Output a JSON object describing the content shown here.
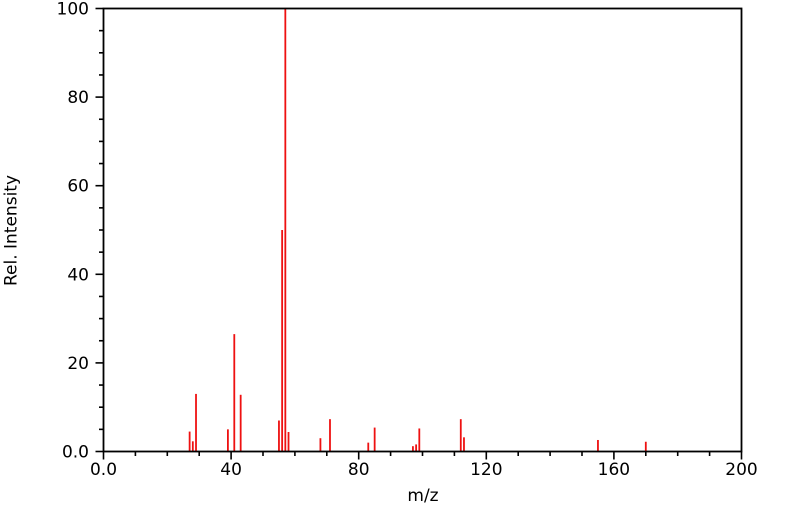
{
  "figure": {
    "background": "#ffffff",
    "xlabel": "m/z",
    "ylabel": "Rel. Intensity"
  },
  "chart_data": {
    "type": "bar",
    "subtype": "mass-spectrum-stem-plot",
    "title": "",
    "xlabel": "m/z",
    "ylabel": "Rel. Intensity",
    "xlim": [
      0,
      200
    ],
    "ylim": [
      0,
      100
    ],
    "grid": false,
    "legend": null,
    "x_major_ticks": [
      0,
      40,
      80,
      120,
      160,
      200
    ],
    "x_major_tick_labels": [
      "0.0",
      "40",
      "80",
      "120",
      "160",
      "200"
    ],
    "x_minor_tick_step": 10,
    "y_major_ticks": [
      0,
      20,
      40,
      60,
      80,
      100
    ],
    "y_major_tick_labels": [
      "0.0",
      "20",
      "40",
      "60",
      "80",
      "100"
    ],
    "y_minor_tick_step": 5,
    "bar_color": "#ee1111",
    "axis_color": "#000000",
    "points": [
      {
        "mz": 27,
        "intensity": 4.5
      },
      {
        "mz": 28,
        "intensity": 2.3
      },
      {
        "mz": 29,
        "intensity": 13.0
      },
      {
        "mz": 39,
        "intensity": 5.0
      },
      {
        "mz": 41,
        "intensity": 26.5
      },
      {
        "mz": 43,
        "intensity": 12.8
      },
      {
        "mz": 55,
        "intensity": 7.0
      },
      {
        "mz": 56,
        "intensity": 50.0
      },
      {
        "mz": 57,
        "intensity": 100.0
      },
      {
        "mz": 58,
        "intensity": 4.4
      },
      {
        "mz": 68,
        "intensity": 3.0
      },
      {
        "mz": 71,
        "intensity": 7.3
      },
      {
        "mz": 83,
        "intensity": 2.0
      },
      {
        "mz": 85,
        "intensity": 5.4
      },
      {
        "mz": 97,
        "intensity": 1.2
      },
      {
        "mz": 98,
        "intensity": 1.6
      },
      {
        "mz": 99,
        "intensity": 5.2
      },
      {
        "mz": 112,
        "intensity": 7.3
      },
      {
        "mz": 113,
        "intensity": 3.2
      },
      {
        "mz": 155,
        "intensity": 2.6
      },
      {
        "mz": 170,
        "intensity": 2.2
      }
    ]
  }
}
